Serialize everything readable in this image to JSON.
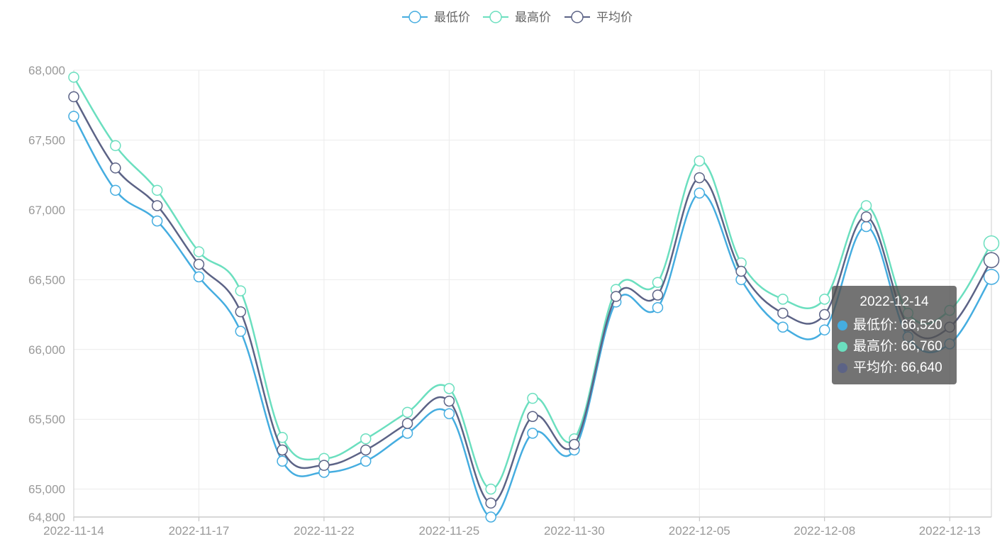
{
  "chart_data": {
    "type": "line",
    "title": "",
    "xlabel": "",
    "ylabel": "",
    "x": [
      "2022-11-14",
      "2022-11-15",
      "2022-11-16",
      "2022-11-17",
      "2022-11-18",
      "2022-11-21",
      "2022-11-22",
      "2022-11-23",
      "2022-11-24",
      "2022-11-25",
      "2022-11-28",
      "2022-11-29",
      "2022-11-30",
      "2022-12-01",
      "2022-12-02",
      "2022-12-05",
      "2022-12-06",
      "2022-12-07",
      "2022-12-08",
      "2022-12-09",
      "2022-12-12",
      "2022-12-13",
      "2022-12-14"
    ],
    "x_tick_labels": [
      "2022-11-14",
      "2022-11-17",
      "2022-11-22",
      "2022-11-25",
      "2022-11-30",
      "2022-12-05",
      "2022-12-08",
      "2022-12-13"
    ],
    "ylim": [
      64800,
      68000
    ],
    "y_ticks": [
      64800,
      65000,
      65500,
      66000,
      66500,
      67000,
      67500,
      68000
    ],
    "y_tick_labels": [
      "64,800",
      "65,000",
      "65,500",
      "66,000",
      "66,500",
      "67,000",
      "67,500",
      "68,000"
    ],
    "grid": true,
    "legend_position": "top-center",
    "series": [
      {
        "name": "最低价",
        "color": "#45ade0",
        "values": [
          67670,
          67140,
          66920,
          66520,
          66130,
          65200,
          65120,
          65200,
          65400,
          65540,
          64800,
          65400,
          65280,
          66340,
          66300,
          67120,
          66500,
          66160,
          66140,
          66880,
          66090,
          66040,
          66520
        ]
      },
      {
        "name": "最高价",
        "color": "#6bdfbf",
        "values": [
          67950,
          67460,
          67140,
          66700,
          66420,
          65370,
          65220,
          65360,
          65550,
          65720,
          65000,
          65650,
          65360,
          66430,
          66480,
          67350,
          66620,
          66360,
          66360,
          67030,
          66260,
          66280,
          66760
        ]
      },
      {
        "name": "平均价",
        "color": "#5c6386",
        "values": [
          67810,
          67300,
          67030,
          66610,
          66270,
          65280,
          65170,
          65280,
          65470,
          65630,
          64900,
          65520,
          65320,
          66380,
          66390,
          67230,
          66560,
          66260,
          66250,
          66950,
          66170,
          66160,
          66640
        ]
      }
    ],
    "tooltip": {
      "title": "2022-12-14",
      "rows": [
        {
          "label": "最低价: 66,520",
          "color": "#45ade0"
        },
        {
          "label": "最高价: 66,760",
          "color": "#6bdfbf"
        },
        {
          "label": "平均价: 66,640",
          "color": "#5c6386"
        }
      ]
    }
  }
}
